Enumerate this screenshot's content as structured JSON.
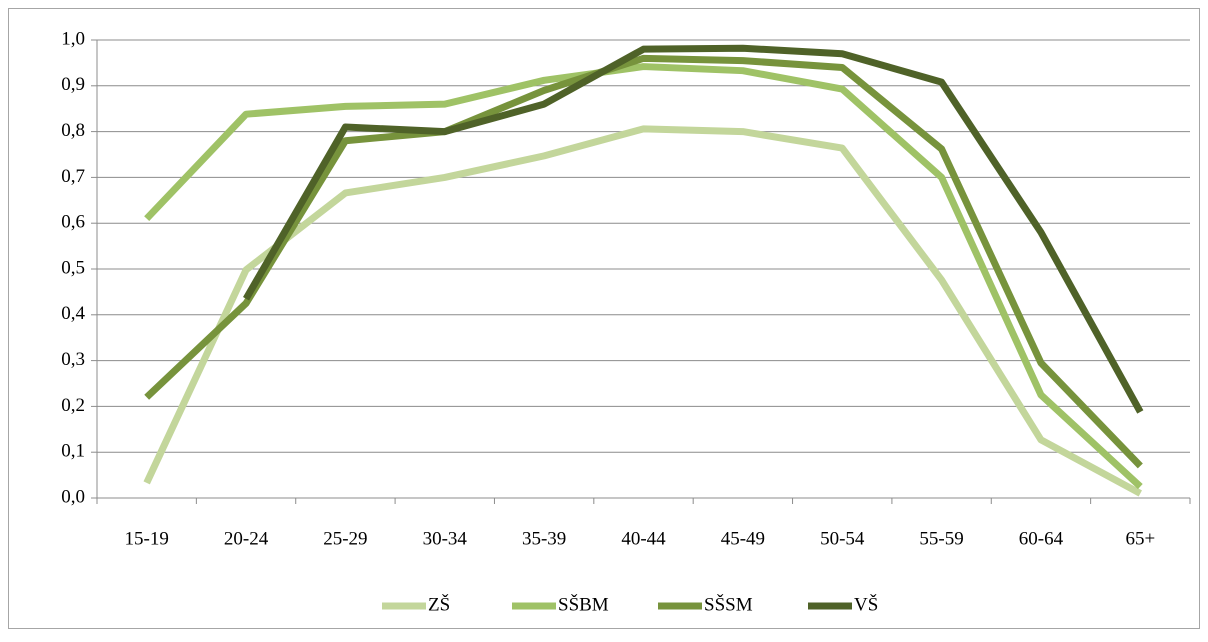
{
  "chart_data": {
    "type": "line",
    "categories": [
      "15-19",
      "20-24",
      "25-29",
      "30-34",
      "35-39",
      "40-44",
      "45-49",
      "50-54",
      "55-59",
      "60-64",
      "65+"
    ],
    "series": [
      {
        "name": "ZŠ",
        "color": "#c3d69b",
        "values": [
          0.033,
          0.498,
          0.666,
          0.7,
          0.747,
          0.806,
          0.8,
          0.764,
          0.476,
          0.127,
          0.01
        ]
      },
      {
        "name": "SŠBM",
        "color": "#9fc266",
        "values": [
          0.61,
          0.838,
          0.855,
          0.86,
          0.912,
          0.942,
          0.933,
          0.893,
          0.7,
          0.225,
          0.025
        ]
      },
      {
        "name": "SŠSM",
        "color": "#77933c",
        "values": [
          0.22,
          0.425,
          0.78,
          0.8,
          0.89,
          0.96,
          0.955,
          0.94,
          0.762,
          0.295,
          0.07
        ]
      },
      {
        "name": "VŠ",
        "color": "#4f6228",
        "values": [
          null,
          0.435,
          0.81,
          0.8,
          0.86,
          0.98,
          0.982,
          0.97,
          0.908,
          0.58,
          0.188
        ]
      }
    ],
    "ylim": [
      0,
      1
    ],
    "yticks": [
      {
        "value": 0,
        "label": "0,0"
      },
      {
        "value": 0.1,
        "label": "0,1"
      },
      {
        "value": 0.2,
        "label": "0,2"
      },
      {
        "value": 0.3,
        "label": "0,3"
      },
      {
        "value": 0.4,
        "label": "0,4"
      },
      {
        "value": 0.5,
        "label": "0,5"
      },
      {
        "value": 0.6,
        "label": "0,6"
      },
      {
        "value": 0.7,
        "label": "0,7"
      },
      {
        "value": 0.8,
        "label": "0,8"
      },
      {
        "value": 0.9,
        "label": "0,9"
      },
      {
        "value": 1,
        "label": "1,0"
      }
    ],
    "grid": true,
    "legend": "bottom"
  }
}
